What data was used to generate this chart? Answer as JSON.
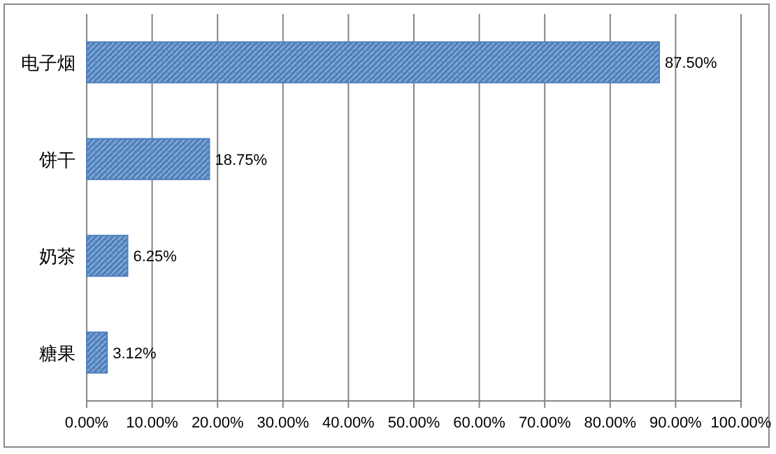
{
  "chart_data": {
    "type": "bar",
    "orientation": "horizontal",
    "categories": [
      "电子烟",
      "饼干",
      "奶茶",
      "糖果"
    ],
    "values": [
      87.5,
      18.75,
      6.25,
      3.12
    ],
    "value_labels": [
      "87.50%",
      "18.75%",
      "6.25%",
      "3.12%"
    ],
    "color": "#4f81bd",
    "xlim": [
      0,
      100
    ],
    "xticks": [
      {
        "value": 0,
        "label": "0.00%"
      },
      {
        "value": 10,
        "label": "10.00%"
      },
      {
        "value": 20,
        "label": "20.00%"
      },
      {
        "value": 30,
        "label": "30.00%"
      },
      {
        "value": 40,
        "label": "40.00%"
      },
      {
        "value": 50,
        "label": "50.00%"
      },
      {
        "value": 60,
        "label": "60.00%"
      },
      {
        "value": 70,
        "label": "70.00%"
      },
      {
        "value": 80,
        "label": "80.00%"
      },
      {
        "value": 90,
        "label": "90.00%"
      },
      {
        "value": 100,
        "label": "100.00%"
      }
    ],
    "grid": "x"
  }
}
